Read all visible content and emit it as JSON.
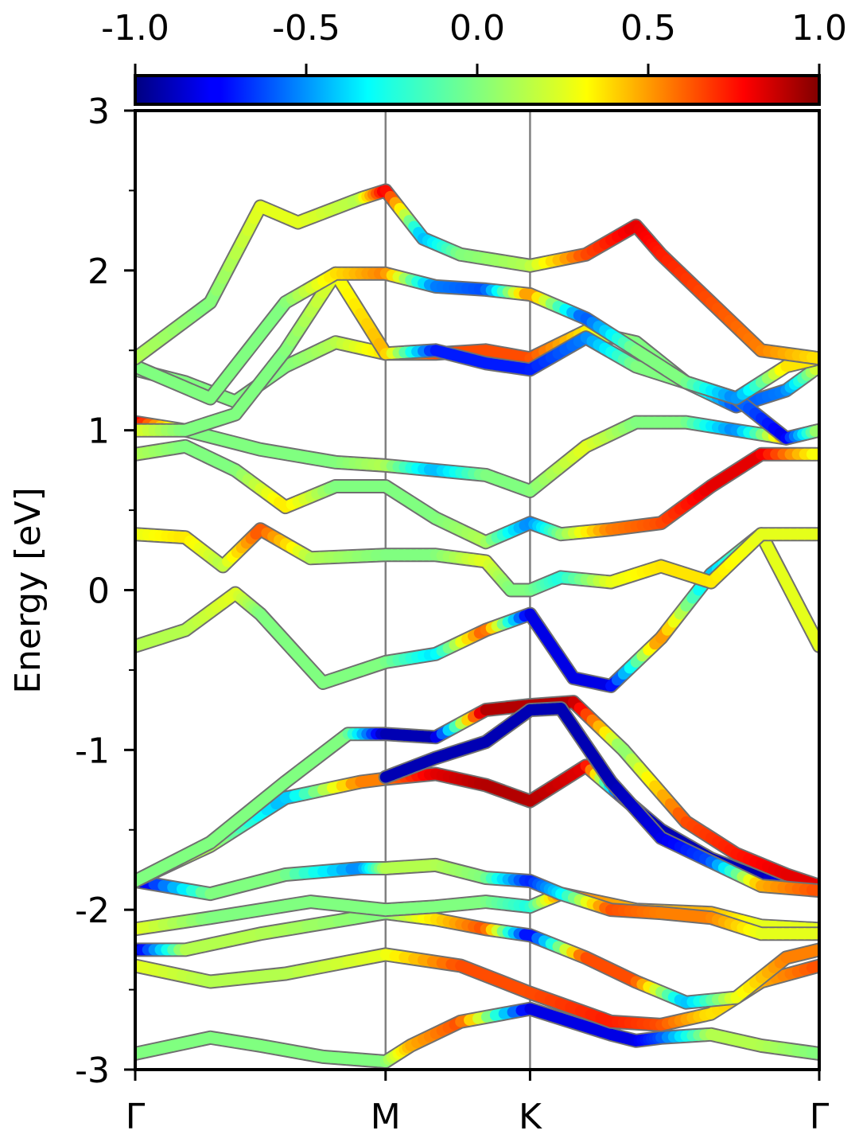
{
  "chart_data": {
    "type": "line",
    "ylabel": "Energy [eV]",
    "ylim": [
      -3,
      3
    ],
    "y_ticks": [
      "3",
      "2",
      "1",
      "0",
      "-1",
      "-2",
      "-3"
    ],
    "y_tick_values": [
      3,
      2,
      1,
      0,
      -1,
      -2,
      -3
    ],
    "k_points": [
      {
        "label": "Γ",
        "k": 0.0
      },
      {
        "label": "M",
        "k": 1.0
      },
      {
        "label": "K",
        "k": 1.577
      },
      {
        "label": "Γ",
        "k": 2.732
      }
    ],
    "colorbar": {
      "range": [
        -1.0,
        1.0
      ],
      "ticks": [
        "-1.0",
        "-0.5",
        "0.0",
        "0.5",
        "1.0"
      ],
      "tick_values": [
        -1.0,
        -0.5,
        0.0,
        0.5,
        1.0
      ],
      "colormap": "jet"
    },
    "grid": false,
    "bands": [
      {
        "k": [
          0,
          0.3,
          0.5,
          0.75,
          1.0,
          1.1,
          1.3,
          1.577,
          1.9,
          2.0,
          2.1,
          2.3,
          2.5,
          2.732
        ],
        "e": [
          -2.9,
          -2.8,
          -2.85,
          -2.92,
          -2.95,
          -2.85,
          -2.7,
          -2.62,
          -2.78,
          -2.82,
          -2.8,
          -2.78,
          -2.85,
          -2.9
        ],
        "w": [
          0.0,
          0.0,
          0.0,
          0.0,
          0.0,
          0.4,
          0.6,
          -0.8,
          -0.8,
          -0.8,
          -0.6,
          0.1,
          0.1,
          0.0
        ]
      },
      {
        "k": [
          0,
          0.3,
          0.6,
          1.0,
          1.3,
          1.577,
          1.9,
          2.1,
          2.3,
          2.5,
          2.732
        ],
        "e": [
          -2.35,
          -2.45,
          -2.4,
          -2.28,
          -2.35,
          -2.52,
          -2.7,
          -2.72,
          -2.65,
          -2.45,
          -2.35
        ],
        "w": [
          0.2,
          0.1,
          0.1,
          0.2,
          0.6,
          0.6,
          0.7,
          0.6,
          0.3,
          0.4,
          0.6
        ]
      },
      {
        "k": [
          0,
          0.2,
          0.5,
          1.0,
          1.2,
          1.4,
          1.577,
          1.8,
          2.0,
          2.2,
          2.4,
          2.6,
          2.732
        ],
        "e": [
          -2.25,
          -2.25,
          -2.15,
          -2.02,
          -2.06,
          -2.12,
          -2.16,
          -2.3,
          -2.45,
          -2.58,
          -2.55,
          -2.3,
          -2.25
        ],
        "w": [
          -0.9,
          0.1,
          0.1,
          0.0,
          0.3,
          0.6,
          -0.8,
          0.6,
          0.6,
          -0.4,
          0.2,
          0.5,
          0.5
        ]
      },
      {
        "k": [
          0,
          0.3,
          0.7,
          1.0,
          1.2,
          1.4,
          1.577,
          1.7,
          2.0,
          2.3,
          2.5,
          2.732
        ],
        "e": [
          -2.12,
          -2.05,
          -1.95,
          -2.0,
          -1.98,
          -1.95,
          -1.98,
          -1.9,
          -2.0,
          -2.02,
          -2.1,
          -2.12
        ],
        "w": [
          0.2,
          0.0,
          0.0,
          0.0,
          0.0,
          0.0,
          -0.2,
          0.5,
          0.4,
          0.4,
          0.2,
          0.2
        ]
      },
      {
        "k": [
          0,
          0.3,
          0.6,
          0.9,
          1.0,
          1.2,
          1.4,
          1.577,
          1.7,
          1.9,
          2.1,
          2.3,
          2.5,
          2.732
        ],
        "e": [
          -1.82,
          -1.9,
          -1.78,
          -1.74,
          -1.74,
          -1.72,
          -1.8,
          -1.82,
          -1.9,
          -2.0,
          -2.02,
          -2.05,
          -2.15,
          -2.15
        ],
        "w": [
          -0.9,
          0.0,
          0.0,
          -0.5,
          0.1,
          0.1,
          0.0,
          -0.7,
          -0.3,
          0.6,
          0.5,
          0.5,
          0.2,
          0.2
        ]
      },
      {
        "k": [
          0,
          0.3,
          0.6,
          0.9,
          1.0,
          1.2,
          1.4,
          1.577,
          1.8,
          1.95,
          2.1,
          2.3,
          2.5,
          2.732
        ],
        "e": [
          -1.82,
          -1.6,
          -1.3,
          -1.2,
          -1.18,
          -1.15,
          -1.22,
          -1.32,
          -1.1,
          -1.3,
          -1.5,
          -1.68,
          -1.8,
          -1.85
        ],
        "w": [
          0.1,
          0.1,
          -0.4,
          0.5,
          0.5,
          0.8,
          0.9,
          0.9,
          0.8,
          -0.8,
          -0.9,
          -0.9,
          -0.9,
          -0.6
        ]
      },
      {
        "k": [
          0,
          0.3,
          0.6,
          0.85,
          1.0,
          1.2,
          1.4,
          1.577,
          1.75,
          1.95,
          2.2,
          2.4,
          2.6,
          2.732
        ],
        "e": [
          -1.82,
          -1.58,
          -1.2,
          -0.9,
          -0.9,
          -0.92,
          -0.75,
          -0.72,
          -0.7,
          -1.0,
          -1.45,
          -1.65,
          -1.78,
          -1.85
        ],
        "w": [
          0.0,
          0.0,
          0.0,
          0.0,
          -0.9,
          -0.9,
          0.9,
          0.9,
          0.9,
          0.0,
          0.6,
          0.7,
          0.8,
          0.8
        ]
      },
      {
        "k": [
          1.0,
          1.2,
          1.4,
          1.577,
          1.7,
          1.9,
          2.1,
          2.3,
          2.5,
          2.732
        ],
        "e": [
          -1.17,
          -1.05,
          -0.95,
          -0.75,
          -0.74,
          -1.2,
          -1.55,
          -1.7,
          -1.85,
          -1.88
        ],
        "w": [
          -0.9,
          -0.9,
          -0.9,
          -0.9,
          -0.9,
          -0.9,
          -0.8,
          -0.6,
          0.4,
          0.6
        ]
      },
      {
        "k": [
          0,
          0.2,
          0.4,
          0.5,
          0.75,
          1.0,
          1.2,
          1.4,
          1.577,
          1.75,
          1.9,
          2.1,
          2.3,
          2.5,
          2.732
        ],
        "e": [
          -0.35,
          -0.25,
          -0.02,
          -0.15,
          -0.58,
          -0.45,
          -0.4,
          -0.25,
          -0.15,
          -0.55,
          -0.6,
          -0.3,
          0.1,
          0.35,
          -0.35
        ],
        "w": [
          0.1,
          0.1,
          0.2,
          0.0,
          0.0,
          0.0,
          -0.3,
          0.6,
          -0.8,
          -0.8,
          -0.8,
          0.5,
          -0.4,
          0.2,
          0.2
        ]
      },
      {
        "k": [
          0,
          0.2,
          0.35,
          0.5,
          0.7,
          1.0,
          1.2,
          1.4,
          1.5,
          1.577,
          1.7,
          1.9,
          2.1,
          2.3,
          2.5,
          2.732
        ],
        "e": [
          0.35,
          0.33,
          0.15,
          0.38,
          0.2,
          0.22,
          0.22,
          0.18,
          0.0,
          0.0,
          0.08,
          0.05,
          0.15,
          0.05,
          0.35,
          0.35
        ],
        "w": [
          0.2,
          0.3,
          0.1,
          0.6,
          0.1,
          0.0,
          0.0,
          0.2,
          0.0,
          0.0,
          -0.2,
          0.2,
          0.3,
          0.3,
          0.2,
          0.2
        ]
      },
      {
        "k": [
          0,
          0.2,
          0.4,
          0.6,
          0.8,
          1.0,
          1.2,
          1.4,
          1.577,
          1.7,
          1.9,
          2.1,
          2.3,
          2.5,
          2.732
        ],
        "e": [
          0.85,
          0.9,
          0.75,
          0.52,
          0.65,
          0.65,
          0.45,
          0.3,
          0.42,
          0.35,
          0.38,
          0.42,
          0.65,
          0.85,
          0.85
        ],
        "w": [
          0.1,
          0.0,
          0.0,
          0.3,
          0.0,
          0.0,
          0.0,
          0.1,
          -0.5,
          0.0,
          0.5,
          0.6,
          0.8,
          0.8,
          0.2
        ]
      },
      {
        "k": [
          0,
          0.2,
          0.5,
          0.8,
          1.0,
          1.2,
          1.4,
          1.577,
          1.8,
          2.0,
          2.2,
          2.4,
          2.6,
          2.732
        ],
        "e": [
          1.05,
          1.0,
          0.88,
          0.8,
          0.78,
          0.75,
          0.72,
          0.62,
          0.9,
          1.05,
          1.05,
          1.0,
          0.95,
          1.0
        ],
        "w": [
          0.8,
          0.0,
          0.0,
          0.0,
          0.1,
          -0.4,
          0.0,
          0.0,
          0.2,
          0.0,
          0.0,
          -0.5,
          0.4,
          0.1
        ]
      },
      {
        "k": [
          0,
          0.2,
          0.4,
          0.6,
          0.8,
          1.0,
          1.2,
          1.4,
          1.577,
          1.8,
          2.0,
          2.2,
          2.4,
          2.6,
          2.732
        ],
        "e": [
          1.38,
          1.3,
          1.18,
          1.4,
          1.55,
          1.48,
          1.48,
          1.5,
          1.45,
          1.62,
          1.55,
          1.3,
          1.15,
          1.25,
          1.4
        ],
        "w": [
          0.0,
          0.0,
          0.0,
          0.0,
          0.1,
          0.3,
          0.6,
          0.6,
          0.6,
          0.3,
          0.0,
          0.0,
          -0.6,
          -0.5,
          0.2
        ]
      },
      {
        "k": [
          0,
          0.2,
          0.4,
          0.6,
          0.8,
          1.0,
          1.2,
          1.4,
          1.577,
          1.8,
          2.0,
          2.2,
          2.4,
          2.6,
          2.732
        ],
        "e": [
          1.0,
          1.0,
          1.1,
          1.5,
          1.98,
          1.48,
          1.5,
          1.42,
          1.38,
          1.58,
          1.4,
          1.3,
          1.2,
          0.95,
          1.0
        ],
        "w": [
          0.2,
          0.0,
          0.0,
          0.0,
          0.2,
          0.4,
          -0.7,
          -0.7,
          -0.7,
          -0.5,
          0.0,
          0.0,
          -0.5,
          -0.8,
          0.1
        ]
      },
      {
        "k": [
          0,
          0.3,
          0.6,
          0.8,
          1.0,
          1.2,
          1.4,
          1.577,
          1.8,
          2.0,
          2.2,
          2.4,
          2.6,
          2.732
        ],
        "e": [
          1.4,
          1.2,
          1.8,
          1.98,
          1.98,
          1.9,
          1.88,
          1.85,
          1.7,
          1.5,
          1.3,
          1.2,
          1.4,
          1.45
        ],
        "w": [
          0.0,
          0.0,
          0.0,
          0.3,
          0.5,
          -0.5,
          -0.6,
          0.5,
          -0.6,
          0.0,
          0.0,
          -0.5,
          0.3,
          0.3
        ]
      },
      {
        "k": [
          0,
          0.3,
          0.5,
          0.65,
          0.9,
          1.0,
          1.15,
          1.3,
          1.577,
          1.8,
          2.0,
          2.1,
          2.3,
          2.5,
          2.732
        ],
        "e": [
          1.45,
          1.8,
          2.4,
          2.3,
          2.45,
          2.5,
          2.2,
          2.1,
          2.03,
          2.1,
          2.28,
          2.1,
          1.8,
          1.5,
          1.45
        ],
        "w": [
          0.1,
          0.0,
          0.2,
          0.2,
          0.1,
          0.8,
          -0.4,
          0.0,
          0.1,
          0.6,
          0.8,
          0.7,
          0.6,
          0.5,
          0.3
        ]
      }
    ]
  }
}
